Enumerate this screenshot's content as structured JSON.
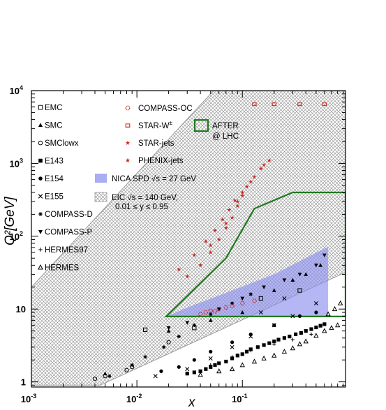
{
  "chart_data": {
    "type": "scatter",
    "title": "",
    "xlabel": "x",
    "ylabel": "Q²[GeV]",
    "xscale": "log",
    "yscale": "log",
    "xlim": [
      0.001,
      0.95
    ],
    "ylim": [
      0.85,
      10000
    ],
    "x_ticks": [
      {
        "v": 0.001,
        "label": "10",
        "exp": "-3"
      },
      {
        "v": 0.01,
        "label": "10",
        "exp": "-2"
      },
      {
        "v": 0.1,
        "label": "10",
        "exp": "-1"
      }
    ],
    "y_ticks": [
      {
        "v": 1,
        "label": "1",
        "exp": ""
      },
      {
        "v": 10,
        "label": "10",
        "exp": ""
      },
      {
        "v": 100,
        "label": "10",
        "exp": "2"
      },
      {
        "v": 1000,
        "label": "10",
        "exp": "3"
      },
      {
        "v": 10000,
        "label": "10",
        "exp": "4"
      }
    ],
    "regions": [
      {
        "name": "NICA SPD √s = 27 GeV",
        "color": "#8c91ee",
        "polygon": [
          [
            0.019,
            7.9
          ],
          [
            0.65,
            7.9
          ],
          [
            0.65,
            72
          ],
          [
            0.45,
            55
          ],
          [
            0.2,
            30
          ],
          [
            0.08,
            18
          ],
          [
            0.03,
            10.5
          ]
        ]
      },
      {
        "name": "EIC √s = 140 GeV, 0.01 ≤ y ≤ 0.95",
        "color": "#b8b8b8",
        "polygon": [
          [
            0.001,
            20
          ],
          [
            0.06,
            12000
          ],
          [
            0.95,
            12000
          ],
          [
            0.95,
            32
          ],
          [
            0.0045,
            0.9
          ],
          [
            0.001,
            0.9
          ]
        ]
      },
      {
        "name": "AFTER @ LHC",
        "color": "#1f7a1f",
        "polygon": [
          [
            0.019,
            7.9
          ],
          [
            0.95,
            7.9
          ],
          [
            0.95,
            400
          ],
          [
            0.3,
            400
          ],
          [
            0.13,
            240
          ],
          [
            0.07,
            50
          ]
        ]
      }
    ],
    "legend_left": [
      {
        "marker": "open-square",
        "label": "EMC"
      },
      {
        "marker": "filled-triangle",
        "label": "SMC"
      },
      {
        "marker": "open-circle",
        "label": "SMClowx"
      },
      {
        "marker": "filled-square",
        "label": "E143"
      },
      {
        "marker": "filled-circle",
        "label": "E154"
      },
      {
        "marker": "cross",
        "label": "E155"
      },
      {
        "marker": "asterisk",
        "label": "COMPASS-D"
      },
      {
        "marker": "filled-down-triangle",
        "label": "COMPASS-P"
      },
      {
        "marker": "plus",
        "label": "HERMES97"
      },
      {
        "marker": "open-triangle",
        "label": "HERMES"
      }
    ],
    "legend_right": [
      {
        "marker": "red-open-circle",
        "label": "COMPASS-OC"
      },
      {
        "marker": "red-open-square",
        "label": "STAR-W",
        "sup": "±"
      },
      {
        "marker": "red-star",
        "label": "STAR-jets"
      },
      {
        "marker": "red-star",
        "label": "PHENIX-jets"
      }
    ],
    "legend_after": {
      "line1": "AFTER",
      "line2": "@ LHC"
    },
    "legend_nica": "NICA SPD √s = 27 GeV",
    "legend_eic": {
      "line1": "EIC √s = 140 GeV,",
      "line2": "0.01 ≤ y ≤ 0.95"
    },
    "series": [
      {
        "name": "EMC",
        "marker": "open-square",
        "points": [
          [
            0.012,
            5.2
          ],
          [
            0.035,
            5.5
          ],
          [
            0.15,
            14
          ],
          [
            0.35,
            18
          ]
        ]
      },
      {
        "name": "SMC",
        "marker": "filled-triangle",
        "points": [
          [
            0.005,
            1.3
          ],
          [
            0.02,
            5
          ],
          [
            0.05,
            7
          ],
          [
            0.1,
            9
          ],
          [
            0.2,
            18
          ],
          [
            0.3,
            25
          ],
          [
            0.4,
            30
          ],
          [
            0.55,
            40
          ]
        ]
      },
      {
        "name": "SMClowx",
        "marker": "open-circle",
        "points": [
          [
            0.004,
            1.1
          ],
          [
            0.005,
            1.2
          ],
          [
            0.008,
            1.45
          ],
          [
            0.009,
            1.6
          ],
          [
            0.02,
            3.5
          ]
        ]
      },
      {
        "name": "E143",
        "marker": "filled-square",
        "points": [
          [
            0.03,
            1.3
          ],
          [
            0.035,
            1.35
          ],
          [
            0.04,
            1.4
          ],
          [
            0.045,
            1.5
          ],
          [
            0.05,
            1.6
          ],
          [
            0.055,
            1.7
          ],
          [
            0.06,
            1.8
          ],
          [
            0.07,
            1.9
          ],
          [
            0.08,
            2.1
          ],
          [
            0.09,
            2.3
          ],
          [
            0.1,
            2.4
          ],
          [
            0.11,
            2.6
          ],
          [
            0.12,
            2.8
          ],
          [
            0.14,
            3.0
          ],
          [
            0.16,
            3.2
          ],
          [
            0.18,
            3.4
          ],
          [
            0.2,
            3.6
          ],
          [
            0.22,
            3.8
          ],
          [
            0.25,
            4.0
          ],
          [
            0.28,
            4.2
          ],
          [
            0.32,
            4.5
          ],
          [
            0.36,
            4.7
          ],
          [
            0.4,
            5.0
          ],
          [
            0.45,
            5.3
          ],
          [
            0.5,
            5.6
          ],
          [
            0.55,
            5.9
          ],
          [
            0.6,
            6.2
          ]
        ]
      },
      {
        "name": "E154",
        "marker": "filled-circle",
        "points": [
          [
            0.017,
            1.4
          ],
          [
            0.025,
            1.6
          ],
          [
            0.035,
            2.0
          ],
          [
            0.05,
            2.6
          ],
          [
            0.08,
            3.5
          ],
          [
            0.12,
            4.5
          ],
          [
            0.2,
            6.0
          ],
          [
            0.35,
            8.0
          ],
          [
            0.5,
            9.0
          ]
        ]
      },
      {
        "name": "E155",
        "marker": "cross",
        "points": [
          [
            0.015,
            1.2
          ],
          [
            0.03,
            1.5
          ],
          [
            0.05,
            2.1
          ],
          [
            0.08,
            3.0
          ],
          [
            0.12,
            4.2
          ],
          [
            0.2,
            6.0
          ],
          [
            0.3,
            8.0
          ],
          [
            0.5,
            12
          ],
          [
            0.25,
            14
          ],
          [
            0.15,
            9
          ]
        ]
      },
      {
        "name": "COMPASS-D",
        "marker": "asterisk",
        "points": [
          [
            0.0055,
            1.2
          ],
          [
            0.009,
            1.7
          ],
          [
            0.012,
            2.2
          ],
          [
            0.018,
            3.0
          ],
          [
            0.025,
            4.2
          ],
          [
            0.035,
            6.0
          ],
          [
            0.05,
            8.5
          ],
          [
            0.08,
            12
          ],
          [
            0.12,
            16
          ]
        ]
      },
      {
        "name": "COMPASS-P",
        "marker": "filled-down-triangle",
        "points": [
          [
            0.02,
            5.5
          ],
          [
            0.03,
            6.5
          ],
          [
            0.06,
            10
          ],
          [
            0.1,
            14
          ],
          [
            0.16,
            20
          ],
          [
            0.25,
            25
          ],
          [
            0.35,
            30
          ],
          [
            0.5,
            40
          ],
          [
            0.6,
            55
          ]
        ]
      },
      {
        "name": "HERMES97",
        "marker": "plus",
        "points": [
          [
            0.03,
            1.3
          ],
          [
            0.05,
            1.7
          ],
          [
            0.08,
            2.2
          ],
          [
            0.12,
            2.7
          ],
          [
            0.2,
            3.3
          ],
          [
            0.3,
            3.8
          ],
          [
            0.45,
            4.5
          ]
        ]
      },
      {
        "name": "HERMES",
        "marker": "open-triangle",
        "points": [
          [
            0.04,
            1.25
          ],
          [
            0.06,
            1.4
          ],
          [
            0.08,
            1.5
          ],
          [
            0.1,
            1.7
          ],
          [
            0.13,
            1.9
          ],
          [
            0.16,
            2.1
          ],
          [
            0.2,
            2.3
          ],
          [
            0.25,
            2.6
          ],
          [
            0.3,
            2.9
          ],
          [
            0.35,
            3.3
          ],
          [
            0.4,
            3.6
          ],
          [
            0.5,
            4.3
          ],
          [
            0.6,
            5.0
          ],
          [
            0.7,
            5.5
          ],
          [
            0.8,
            6.0
          ],
          [
            0.65,
            8.5
          ],
          [
            0.75,
            10
          ],
          [
            0.85,
            12
          ]
        ]
      },
      {
        "name": "COMPASS-OC",
        "marker": "red-open-circle",
        "points": [
          [
            0.04,
            8.5
          ],
          [
            0.05,
            9.5
          ],
          [
            0.06,
            10
          ],
          [
            0.07,
            10.5
          ],
          [
            0.08,
            11
          ],
          [
            0.1,
            12
          ],
          [
            0.13,
            13
          ],
          [
            0.045,
            9
          ],
          [
            0.055,
            9.3
          ]
        ]
      },
      {
        "name": "STAR-W±",
        "marker": "red-open-square",
        "points": [
          [
            0.13,
            6500
          ],
          [
            0.2,
            6500
          ],
          [
            0.35,
            6500
          ],
          [
            0.6,
            6500
          ]
        ]
      },
      {
        "name": "STAR-jets",
        "marker": "red-star",
        "points": [
          [
            0.03,
            28
          ],
          [
            0.04,
            40
          ],
          [
            0.05,
            60
          ],
          [
            0.06,
            90
          ],
          [
            0.07,
            130
          ],
          [
            0.08,
            180
          ],
          [
            0.09,
            260
          ],
          [
            0.1,
            360
          ],
          [
            0.11,
            480
          ],
          [
            0.13,
            650
          ],
          [
            0.15,
            850
          ],
          [
            0.18,
            1100
          ],
          [
            0.05,
            75
          ],
          [
            0.07,
            150
          ],
          [
            0.09,
            300
          ],
          [
            0.12,
            560
          ],
          [
            0.16,
            950
          ]
        ]
      },
      {
        "name": "PHENIX-jets",
        "marker": "red-star",
        "points": [
          [
            0.025,
            35
          ],
          [
            0.035,
            55
          ],
          [
            0.045,
            85
          ],
          [
            0.055,
            120
          ],
          [
            0.065,
            170
          ],
          [
            0.075,
            230
          ],
          [
            0.085,
            310
          ],
          [
            0.1,
            400
          ]
        ]
      }
    ]
  }
}
